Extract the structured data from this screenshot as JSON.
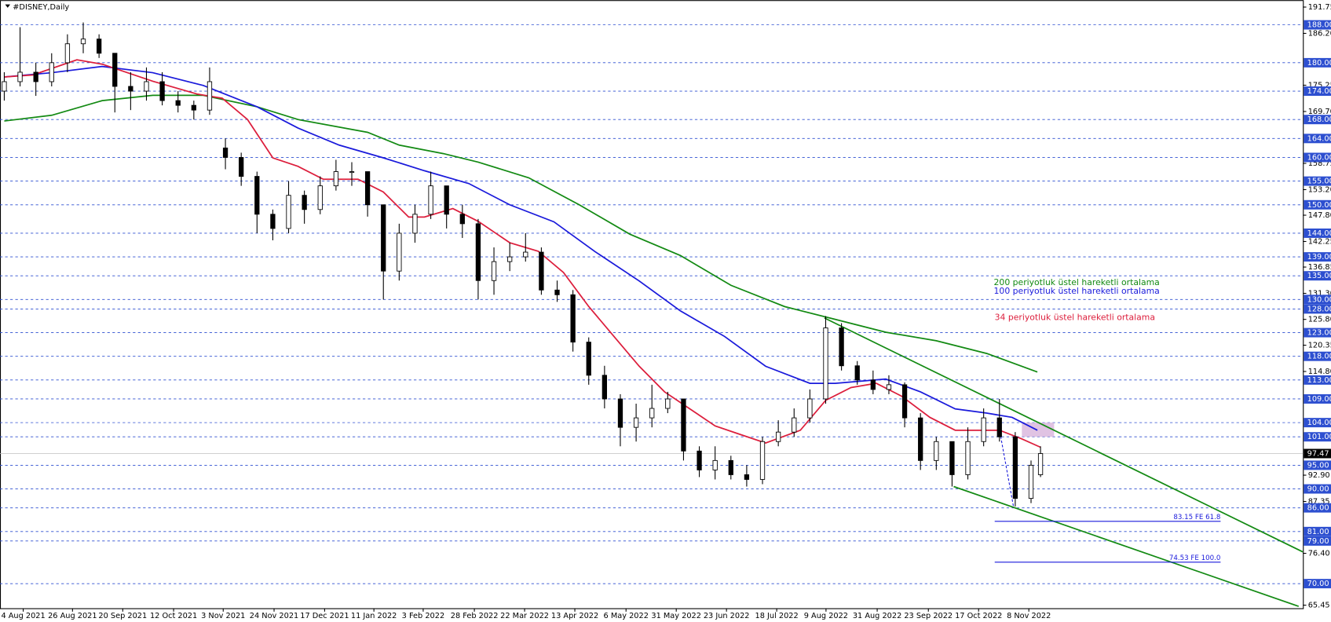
{
  "chart_data": {
    "type": "candlestick",
    "title": "#DISNEY,Daily",
    "xlim": [
      -1.35,
      411.05
    ],
    "ylim": [
      65.45,
      191.75
    ],
    "xticks": [
      {
        "value": 6,
        "label": "4 Aug 2021"
      },
      {
        "value": 21.6,
        "label": "26 Aug 2021"
      },
      {
        "value": 37.5,
        "label": "20 Sep 2021"
      },
      {
        "value": 53.6,
        "label": "12 Oct 2021"
      },
      {
        "value": 69.3,
        "label": "3 Nov 2021"
      },
      {
        "value": 85.4,
        "label": "24 Nov 2021"
      },
      {
        "value": 101.4,
        "label": "17 Dec 2021"
      },
      {
        "value": 117,
        "label": "11 Jan 2022"
      },
      {
        "value": 132.6,
        "label": "3 Feb 2022"
      },
      {
        "value": 148.8,
        "label": "28 Feb 2022"
      },
      {
        "value": 164.7,
        "label": "22 Mar 2022"
      },
      {
        "value": 180.6,
        "label": "13 Apr 2022"
      },
      {
        "value": 196.8,
        "label": "6 May 2022"
      },
      {
        "value": 212.7,
        "label": "31 May 2022"
      },
      {
        "value": 228.6,
        "label": "23 Jun 2022"
      },
      {
        "value": 244.5,
        "label": "18 Jul 2022"
      },
      {
        "value": 260.1,
        "label": "9 Aug 2022"
      },
      {
        "value": 276.3,
        "label": "31 Aug 2022"
      },
      {
        "value": 292.5,
        "label": "23 Sep 2022"
      },
      {
        "value": 308.4,
        "label": "17 Oct 2022"
      },
      {
        "value": 324.3,
        "label": "8 Nov 2022"
      }
    ],
    "yticks": [
      191.75,
      {
        "value": 186.2,
        "label": "186.20"
      },
      175.25,
      {
        "value": 169.7,
        "label": "169.70"
      },
      158.75,
      {
        "value": 153.2,
        "label": "153.20"
      },
      {
        "value": 147.8,
        "label": "147.80"
      },
      142.25,
      136.85,
      {
        "value": 131.3,
        "label": "131.30"
      },
      {
        "value": 125.8,
        "label": "125.80"
      },
      120.35,
      {
        "value": 114.8,
        "label": "114.80"
      },
      {
        "value": 92.9,
        "label": "92.90"
      },
      87.35,
      {
        "value": 76.4,
        "label": "76.40"
      },
      65.45
    ],
    "levels_color": "#2d4fd0",
    "levels": [
      {
        "value": 188,
        "label": "188.00"
      },
      {
        "value": 180,
        "label": "180.00"
      },
      {
        "value": 174,
        "label": "174.00"
      },
      {
        "value": 168,
        "label": "168.00"
      },
      {
        "value": 164,
        "label": "164.00"
      },
      {
        "value": 160,
        "label": "160.00"
      },
      {
        "value": 155,
        "label": "155.00"
      },
      {
        "value": 150,
        "label": "150.00"
      },
      {
        "value": 144,
        "label": "144.00"
      },
      {
        "value": 139,
        "label": "139.00"
      },
      {
        "value": 135,
        "label": "135.00"
      },
      {
        "value": 130,
        "label": "130.00"
      },
      {
        "value": 128,
        "label": "128.00"
      },
      {
        "value": 123,
        "label": "123.00"
      },
      {
        "value": 118,
        "label": "118.00"
      },
      {
        "value": 113,
        "label": "113.00"
      },
      {
        "value": 109,
        "label": "109.00"
      },
      {
        "value": 104,
        "label": "104.00"
      },
      {
        "value": 101,
        "label": "101.00"
      },
      {
        "value": 95,
        "label": "95.00"
      },
      {
        "value": 90,
        "label": "90.00"
      },
      {
        "value": 86,
        "label": "86.00"
      },
      {
        "value": 81,
        "label": "81.00"
      },
      {
        "value": 79,
        "label": "79.00"
      },
      {
        "value": 70,
        "label": "70.00"
      }
    ],
    "current_price": 97.47,
    "candles": {
      "x": [
        0,
        5,
        10,
        15,
        20,
        25,
        30,
        35,
        40,
        45,
        50,
        55,
        60,
        65,
        70,
        75,
        80,
        85,
        90,
        95,
        100,
        105,
        110,
        115,
        120,
        125,
        130,
        135,
        140,
        145,
        150,
        155,
        160,
        165,
        170,
        175,
        180,
        185,
        190,
        195,
        200,
        205,
        210,
        215,
        220,
        225,
        230,
        235,
        240,
        245,
        250,
        255,
        260,
        265,
        270,
        275,
        280,
        285,
        290,
        295,
        300,
        305,
        310,
        315,
        320,
        325,
        328
      ],
      "open": [
        174,
        176,
        178,
        176,
        180,
        184,
        185,
        182,
        175,
        174,
        176,
        172,
        171,
        170,
        162,
        160,
        156,
        148,
        145,
        152,
        149,
        154,
        157,
        157,
        150,
        136,
        144,
        148,
        154,
        148,
        146,
        134,
        138,
        139,
        140,
        132,
        131,
        121,
        114,
        109,
        103,
        105,
        107,
        109,
        98,
        94,
        96,
        93,
        92,
        100,
        102,
        105,
        109,
        124,
        116,
        113,
        111,
        112,
        105,
        96,
        100,
        93,
        100,
        105,
        101,
        88,
        93
      ],
      "high": [
        178,
        187.5,
        180,
        182,
        186,
        188.5,
        186,
        182,
        178,
        179,
        178,
        174,
        172,
        179,
        164,
        161,
        157,
        149,
        155,
        153,
        156,
        159.5,
        159,
        157,
        150,
        146,
        150,
        157,
        154,
        150,
        147,
        141,
        142,
        144,
        141,
        134,
        132,
        122,
        116,
        110,
        108,
        112,
        110.5,
        109,
        99,
        99,
        97,
        95,
        101,
        104.5,
        107,
        111,
        126.5,
        125,
        117,
        115,
        114,
        112.5,
        106,
        101,
        100,
        103,
        107,
        109,
        102,
        96,
        99
      ],
      "low": [
        172,
        175,
        173,
        175,
        178,
        182,
        181,
        169.5,
        170,
        172,
        171,
        169.5,
        168,
        169,
        157.5,
        154,
        144,
        142.5,
        144,
        146,
        148,
        153,
        154,
        147.5,
        130,
        134,
        142,
        147,
        145,
        143,
        130,
        131,
        136,
        138,
        131,
        129.5,
        119,
        112,
        107,
        99,
        100,
        103,
        106,
        96,
        92.5,
        92,
        92,
        90.5,
        91,
        99,
        101,
        104,
        108,
        115,
        112,
        110,
        110,
        103,
        94,
        94,
        90.5,
        92,
        99,
        100,
        86.3,
        87,
        92.5
      ],
      "close": [
        176,
        178,
        176,
        180,
        184,
        185,
        182,
        175,
        174,
        176,
        172,
        171,
        170,
        176,
        160,
        156,
        148,
        145,
        152,
        149,
        154,
        157,
        157,
        150,
        136,
        144,
        148,
        154,
        148,
        146,
        134,
        138,
        139,
        140,
        132,
        131,
        121,
        114,
        109,
        103,
        105,
        107,
        109,
        98,
        94,
        96,
        93,
        92,
        100,
        102,
        105,
        109,
        124,
        116,
        113,
        111,
        112,
        105,
        96,
        100,
        93,
        100,
        105,
        101,
        88,
        95,
        97.47
      ]
    },
    "indicators": [
      {
        "name": "200 periyotluk üstel hareketli ortalama",
        "color": "#138a13",
        "x": [
          0,
          15,
          31,
          47,
          63,
          80,
          93,
          115,
          125,
          139,
          150,
          166,
          182,
          198,
          214,
          230,
          247,
          263,
          279,
          295,
          311,
          327
        ],
        "values": [
          167.7,
          168.9,
          172,
          173.1,
          173.1,
          170.7,
          168,
          165.3,
          162.6,
          160.8,
          159,
          155.7,
          150,
          143.8,
          139.3,
          133,
          128.5,
          125.8,
          123.1,
          121.3,
          118.6,
          114.7
        ]
      },
      {
        "name": "100 periyotluk üstel hareketli ortalama",
        "color": "#1a1adb",
        "x": [
          0,
          15,
          31,
          47,
          63,
          80,
          93,
          106,
          120,
          133,
          147,
          160,
          174,
          187,
          201,
          214,
          228,
          241,
          255,
          263,
          279,
          290,
          301,
          311,
          319,
          327
        ],
        "values": [
          177,
          177.9,
          179.2,
          177.9,
          175.2,
          170.7,
          166.2,
          162.6,
          159.9,
          157.2,
          154.5,
          150,
          146.4,
          140.1,
          133.9,
          127.6,
          122.2,
          115.9,
          112.3,
          112.3,
          113.2,
          110.5,
          106.9,
          106,
          105.1,
          102.4
        ]
      },
      {
        "name": "34 periyotluk üstel hareketli ortalama",
        "color": "#dc1e3c",
        "x": [
          0,
          9,
          23,
          31,
          47,
          61,
          69,
          77,
          85,
          93,
          101,
          112,
          120,
          128,
          133,
          142,
          150,
          160,
          169,
          177,
          185,
          193,
          201,
          209,
          217,
          225,
          233,
          241,
          252,
          260,
          268,
          276,
          284,
          293,
          301,
          309,
          315,
          322,
          328
        ],
        "values": [
          177,
          177.4,
          180.6,
          179.7,
          176.1,
          173.4,
          172.5,
          168,
          159.9,
          158.1,
          155.4,
          155.4,
          152.7,
          147.4,
          147.4,
          149.2,
          146.5,
          142,
          140.2,
          135.7,
          128.5,
          122.2,
          115.9,
          110.5,
          106.9,
          103.3,
          101.5,
          99.7,
          102.4,
          108.7,
          111.4,
          112.3,
          109.6,
          105.1,
          102.4,
          102.4,
          102.4,
          100.6,
          98.8
        ]
      }
    ],
    "trendlines": [
      {
        "color": "#138a13",
        "x": [
          259.6,
          411
        ],
        "values": [
          126.1,
          76.7
        ]
      },
      {
        "color": "#138a13",
        "x": [
          300.5,
          409.7
        ],
        "values": [
          90.5,
          65.2
        ]
      },
      {
        "color": "#1a1adb",
        "x": [
          315.4,
          319.4
        ],
        "values": [
          101.1,
          86.4
        ]
      }
    ],
    "fibo_levels": [
      {
        "value": 83.15,
        "label": "83.15 FE 61.8",
        "x": [
          313.5,
          385
        ]
      },
      {
        "value": 74.53,
        "label": "74.53 FE 100.0",
        "x": [
          313.5,
          385
        ]
      }
    ],
    "zone": {
      "color": "#d8b4dc",
      "x": [
        322.1,
        332.3
      ],
      "values": [
        104,
        101
      ]
    }
  }
}
